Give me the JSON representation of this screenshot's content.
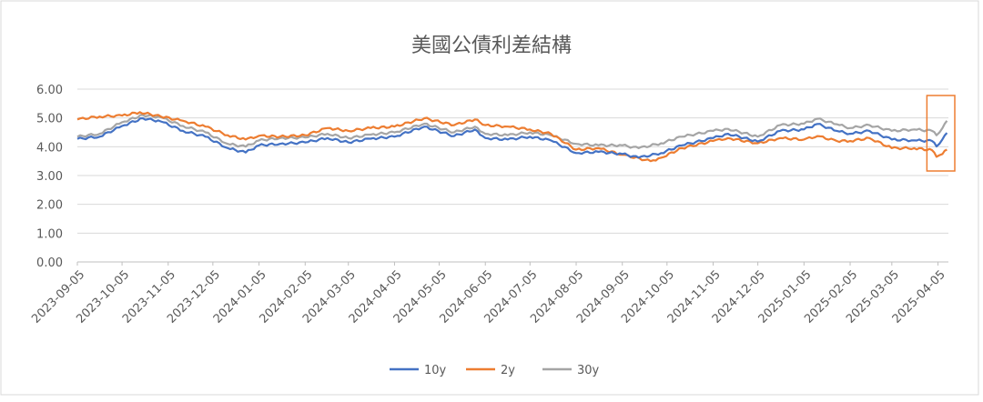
{
  "chart_data": {
    "type": "line",
    "title": "美國公債利差結構",
    "xlabel": "",
    "ylabel": "",
    "ylim": [
      0,
      6
    ],
    "y_ticks": [
      "0.00",
      "1.00",
      "2.00",
      "3.00",
      "4.00",
      "5.00",
      "6.00"
    ],
    "x_ticks": [
      "2023-09-05",
      "2023-10-05",
      "2023-11-05",
      "2023-12-05",
      "2024-01-05",
      "2024-02-05",
      "2024-03-05",
      "2024-04-05",
      "2024-05-05",
      "2024-06-05",
      "2024-07-05",
      "2024-08-05",
      "2024-09-05",
      "2024-10-05",
      "2024-11-05",
      "2024-12-05",
      "2025-01-05",
      "2025-02-05",
      "2025-03-05",
      "2025-04-05"
    ],
    "grid": true,
    "legend_position": "bottom",
    "highlight_box": "2025-04",
    "colors": {
      "10y": "#4472c4",
      "2y": "#ed7d31",
      "30y": "#a5a5a5",
      "highlight": "#ed7d31"
    },
    "series": [
      {
        "name": "10y",
        "values": [
          [
            "2023-09-05",
            4.27
          ],
          [
            "2023-09-20",
            4.35
          ],
          [
            "2023-10-05",
            4.72
          ],
          [
            "2023-10-19",
            4.99
          ],
          [
            "2023-10-31",
            4.88
          ],
          [
            "2023-11-15",
            4.55
          ],
          [
            "2023-11-30",
            4.35
          ],
          [
            "2023-12-15",
            3.95
          ],
          [
            "2023-12-27",
            3.8
          ],
          [
            "2024-01-05",
            4.05
          ],
          [
            "2024-01-19",
            4.1
          ],
          [
            "2024-02-05",
            4.15
          ],
          [
            "2024-02-20",
            4.3
          ],
          [
            "2024-03-05",
            4.15
          ],
          [
            "2024-03-20",
            4.28
          ],
          [
            "2024-04-05",
            4.35
          ],
          [
            "2024-04-25",
            4.7
          ],
          [
            "2024-05-15",
            4.37
          ],
          [
            "2024-05-29",
            4.6
          ],
          [
            "2024-06-05",
            4.3
          ],
          [
            "2024-06-20",
            4.25
          ],
          [
            "2024-07-05",
            4.35
          ],
          [
            "2024-07-19",
            4.22
          ],
          [
            "2024-08-05",
            3.78
          ],
          [
            "2024-08-20",
            3.82
          ],
          [
            "2024-09-05",
            3.75
          ],
          [
            "2024-09-16",
            3.62
          ],
          [
            "2024-10-01",
            3.78
          ],
          [
            "2024-10-15",
            4.05
          ],
          [
            "2024-11-05",
            4.3
          ],
          [
            "2024-11-15",
            4.45
          ],
          [
            "2024-12-05",
            4.18
          ],
          [
            "2024-12-20",
            4.55
          ],
          [
            "2025-01-05",
            4.6
          ],
          [
            "2025-01-14",
            4.79
          ],
          [
            "2025-01-27",
            4.55
          ],
          [
            "2025-02-05",
            4.45
          ],
          [
            "2025-02-18",
            4.55
          ],
          [
            "2025-03-05",
            4.25
          ],
          [
            "2025-03-20",
            4.22
          ],
          [
            "2025-04-01",
            4.2
          ],
          [
            "2025-04-04",
            4.01
          ],
          [
            "2025-04-08",
            4.26
          ],
          [
            "2025-04-11",
            4.48
          ]
        ]
      },
      {
        "name": "2y",
        "values": [
          [
            "2023-09-05",
            4.95
          ],
          [
            "2023-09-20",
            5.05
          ],
          [
            "2023-10-05",
            5.08
          ],
          [
            "2023-10-17",
            5.2
          ],
          [
            "2023-10-31",
            5.05
          ],
          [
            "2023-11-15",
            4.9
          ],
          [
            "2023-11-30",
            4.7
          ],
          [
            "2023-12-15",
            4.4
          ],
          [
            "2023-12-27",
            4.25
          ],
          [
            "2024-01-05",
            4.38
          ],
          [
            "2024-01-19",
            4.35
          ],
          [
            "2024-02-05",
            4.4
          ],
          [
            "2024-02-20",
            4.65
          ],
          [
            "2024-03-05",
            4.55
          ],
          [
            "2024-03-20",
            4.65
          ],
          [
            "2024-04-05",
            4.7
          ],
          [
            "2024-04-25",
            4.99
          ],
          [
            "2024-05-15",
            4.75
          ],
          [
            "2024-05-29",
            4.95
          ],
          [
            "2024-06-05",
            4.75
          ],
          [
            "2024-06-20",
            4.7
          ],
          [
            "2024-07-05",
            4.6
          ],
          [
            "2024-07-19",
            4.45
          ],
          [
            "2024-08-05",
            3.9
          ],
          [
            "2024-08-20",
            3.95
          ],
          [
            "2024-09-05",
            3.72
          ],
          [
            "2024-09-24",
            3.5
          ],
          [
            "2024-10-01",
            3.62
          ],
          [
            "2024-10-15",
            3.95
          ],
          [
            "2024-11-05",
            4.2
          ],
          [
            "2024-11-15",
            4.3
          ],
          [
            "2024-12-05",
            4.12
          ],
          [
            "2024-12-20",
            4.3
          ],
          [
            "2025-01-05",
            4.25
          ],
          [
            "2025-01-14",
            4.37
          ],
          [
            "2025-01-27",
            4.2
          ],
          [
            "2025-02-05",
            4.2
          ],
          [
            "2025-02-18",
            4.3
          ],
          [
            "2025-03-05",
            3.95
          ],
          [
            "2025-03-20",
            3.95
          ],
          [
            "2025-04-01",
            3.88
          ],
          [
            "2025-04-04",
            3.65
          ],
          [
            "2025-04-08",
            3.75
          ],
          [
            "2025-04-11",
            3.9
          ]
        ]
      },
      {
        "name": "30y",
        "values": [
          [
            "2023-09-05",
            4.35
          ],
          [
            "2023-09-20",
            4.45
          ],
          [
            "2023-10-05",
            4.85
          ],
          [
            "2023-10-19",
            5.1
          ],
          [
            "2023-10-31",
            5.02
          ],
          [
            "2023-11-15",
            4.72
          ],
          [
            "2023-11-30",
            4.5
          ],
          [
            "2023-12-15",
            4.1
          ],
          [
            "2023-12-27",
            4.0
          ],
          [
            "2024-01-05",
            4.22
          ],
          [
            "2024-01-19",
            4.3
          ],
          [
            "2024-02-05",
            4.32
          ],
          [
            "2024-02-20",
            4.45
          ],
          [
            "2024-03-05",
            4.3
          ],
          [
            "2024-03-20",
            4.42
          ],
          [
            "2024-04-05",
            4.5
          ],
          [
            "2024-04-25",
            4.8
          ],
          [
            "2024-05-15",
            4.5
          ],
          [
            "2024-05-29",
            4.7
          ],
          [
            "2024-06-05",
            4.45
          ],
          [
            "2024-06-20",
            4.4
          ],
          [
            "2024-07-05",
            4.5
          ],
          [
            "2024-07-19",
            4.4
          ],
          [
            "2024-08-05",
            4.1
          ],
          [
            "2024-08-20",
            4.05
          ],
          [
            "2024-09-05",
            4.05
          ],
          [
            "2024-09-16",
            3.95
          ],
          [
            "2024-10-01",
            4.12
          ],
          [
            "2024-10-15",
            4.35
          ],
          [
            "2024-11-05",
            4.55
          ],
          [
            "2024-11-15",
            4.62
          ],
          [
            "2024-12-05",
            4.35
          ],
          [
            "2024-12-20",
            4.75
          ],
          [
            "2025-01-05",
            4.8
          ],
          [
            "2025-01-14",
            4.97
          ],
          [
            "2025-01-27",
            4.78
          ],
          [
            "2025-02-05",
            4.65
          ],
          [
            "2025-02-18",
            4.75
          ],
          [
            "2025-03-05",
            4.55
          ],
          [
            "2025-03-20",
            4.6
          ],
          [
            "2025-04-01",
            4.55
          ],
          [
            "2025-04-04",
            4.4
          ],
          [
            "2025-04-08",
            4.65
          ],
          [
            "2025-04-11",
            4.9
          ]
        ]
      }
    ]
  }
}
